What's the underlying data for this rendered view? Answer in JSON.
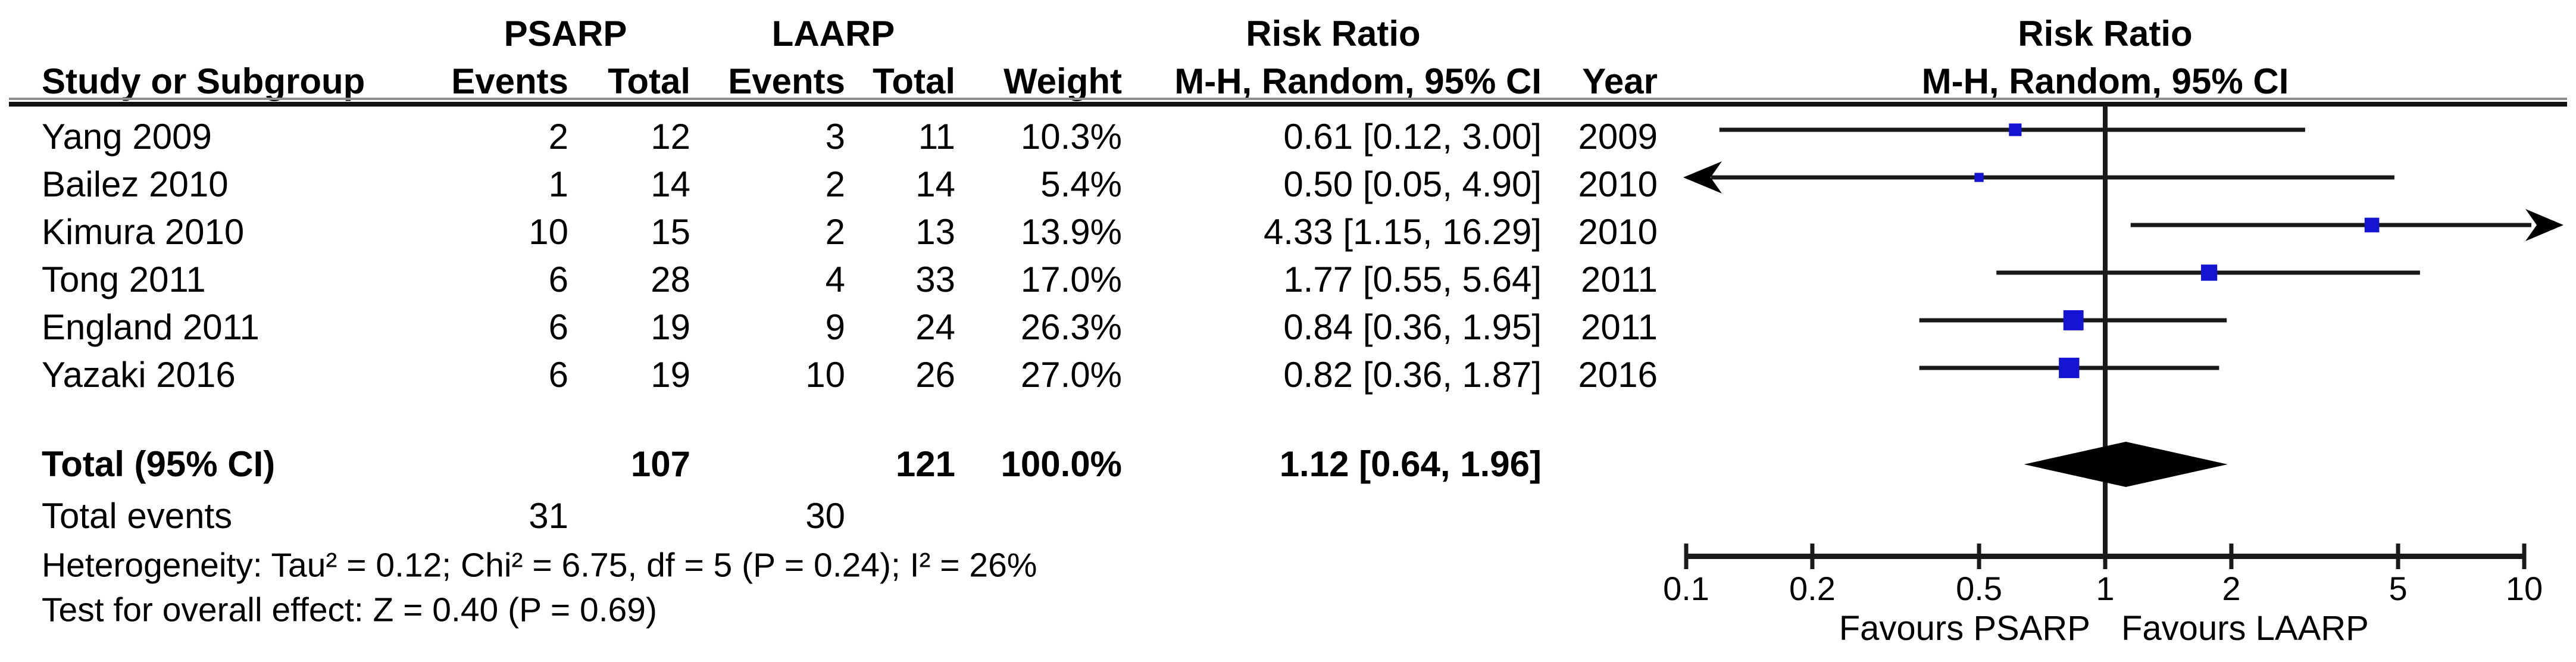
{
  "header": {
    "study_col": "Study or Subgroup",
    "group1": "PSARP",
    "group2": "LAARP",
    "events_col": "Events",
    "total_col": "Total",
    "weight_col": "Weight",
    "rr_group": "Risk Ratio",
    "mh_col": "M-H, Random, 95% CI",
    "year_col": "Year",
    "plot_title": "Risk Ratio",
    "plot_subtitle": "M-H, Random, 95% CI"
  },
  "studies": [
    {
      "name": "Yang 2009",
      "psarp_events": "2",
      "psarp_total": "12",
      "laarp_events": "3",
      "laarp_total": "11",
      "weight": "10.3%",
      "ci_text": "0.61 [0.12, 3.00]",
      "year": "2009",
      "rr": 0.61,
      "lo": 0.12,
      "hi": 3.0,
      "weight_val": 10.3
    },
    {
      "name": "Bailez 2010",
      "psarp_events": "1",
      "psarp_total": "14",
      "laarp_events": "2",
      "laarp_total": "14",
      "weight": "5.4%",
      "ci_text": "0.50 [0.05, 4.90]",
      "year": "2010",
      "rr": 0.5,
      "lo": 0.05,
      "hi": 4.9,
      "weight_val": 5.4
    },
    {
      "name": "Kimura 2010",
      "psarp_events": "10",
      "psarp_total": "15",
      "laarp_events": "2",
      "laarp_total": "13",
      "weight": "13.9%",
      "ci_text": "4.33 [1.15, 16.29]",
      "year": "2010",
      "rr": 4.33,
      "lo": 1.15,
      "hi": 16.29,
      "weight_val": 13.9
    },
    {
      "name": "Tong 2011",
      "psarp_events": "6",
      "psarp_total": "28",
      "laarp_events": "4",
      "laarp_total": "33",
      "weight": "17.0%",
      "ci_text": "1.77 [0.55, 5.64]",
      "year": "2011",
      "rr": 1.77,
      "lo": 0.55,
      "hi": 5.64,
      "weight_val": 17.0
    },
    {
      "name": "England 2011",
      "psarp_events": "6",
      "psarp_total": "19",
      "laarp_events": "9",
      "laarp_total": "24",
      "weight": "26.3%",
      "ci_text": "0.84 [0.36, 1.95]",
      "year": "2011",
      "rr": 0.84,
      "lo": 0.36,
      "hi": 1.95,
      "weight_val": 26.3
    },
    {
      "name": "Yazaki 2016",
      "psarp_events": "6",
      "psarp_total": "19",
      "laarp_events": "10",
      "laarp_total": "26",
      "weight": "27.0%",
      "ci_text": "0.82 [0.36, 1.87]",
      "year": "2016",
      "rr": 0.82,
      "lo": 0.36,
      "hi": 1.87,
      "weight_val": 27.0
    }
  ],
  "total_row": {
    "label": "Total (95% CI)",
    "psarp_total": "107",
    "laarp_total": "121",
    "weight": "100.0%",
    "ci_text": "1.12 [0.64, 1.96]",
    "rr": 1.12,
    "lo": 0.64,
    "hi": 1.96
  },
  "total_events": {
    "label": "Total events",
    "psarp": "31",
    "laarp": "30"
  },
  "footnotes": {
    "heterogeneity": "Heterogeneity: Tau² = 0.12; Chi² = 6.75, df = 5 (P = 0.24); I² = 26%",
    "overall_effect": "Test for overall effect: Z = 0.40 (P = 0.69)"
  },
  "axis": {
    "tick_labels": [
      "0.1",
      "0.2",
      "0.5",
      "1",
      "2",
      "5",
      "10"
    ],
    "tick_values": [
      0.1,
      0.2,
      0.5,
      1,
      2,
      5,
      10
    ],
    "min": 0.1,
    "max": 10,
    "favours_left": "Favours PSARP",
    "favours_right": "Favours LAARP"
  },
  "colors": {
    "marker_blue": "#1414d2",
    "line_black": "#1a1a1a"
  },
  "chart_data": {
    "type": "scatter",
    "subtype": "forest_plot",
    "title": "Risk Ratio",
    "subtitle": "M-H, Random, 95% CI",
    "method": "Mantel-Haenszel, Random effects, 95% CI",
    "x_scale": "log10",
    "xlim": [
      0.1,
      10
    ],
    "x_ticks": [
      0.1,
      0.2,
      0.5,
      1,
      2,
      5,
      10
    ],
    "x_annotations": [
      "Favours PSARP",
      "Favours LAARP"
    ],
    "groups": [
      "PSARP",
      "LAARP"
    ],
    "studies": [
      {
        "study": "Yang 2009",
        "psarp_events": 2,
        "psarp_total": 12,
        "laarp_events": 3,
        "laarp_total": 11,
        "weight_pct": 10.3,
        "rr": 0.61,
        "ci_low": 0.12,
        "ci_high": 3.0,
        "year": 2009
      },
      {
        "study": "Bailez 2010",
        "psarp_events": 1,
        "psarp_total": 14,
        "laarp_events": 2,
        "laarp_total": 14,
        "weight_pct": 5.4,
        "rr": 0.5,
        "ci_low": 0.05,
        "ci_high": 4.9,
        "year": 2010
      },
      {
        "study": "Kimura 2010",
        "psarp_events": 10,
        "psarp_total": 15,
        "laarp_events": 2,
        "laarp_total": 13,
        "weight_pct": 13.9,
        "rr": 4.33,
        "ci_low": 1.15,
        "ci_high": 16.29,
        "year": 2010
      },
      {
        "study": "Tong 2011",
        "psarp_events": 6,
        "psarp_total": 28,
        "laarp_events": 4,
        "laarp_total": 33,
        "weight_pct": 17.0,
        "rr": 1.77,
        "ci_low": 0.55,
        "ci_high": 5.64,
        "year": 2011
      },
      {
        "study": "England 2011",
        "psarp_events": 6,
        "psarp_total": 19,
        "laarp_events": 9,
        "laarp_total": 24,
        "weight_pct": 26.3,
        "rr": 0.84,
        "ci_low": 0.36,
        "ci_high": 1.95,
        "year": 2011
      },
      {
        "study": "Yazaki 2016",
        "psarp_events": 6,
        "psarp_total": 19,
        "laarp_events": 10,
        "laarp_total": 26,
        "weight_pct": 27.0,
        "rr": 0.82,
        "ci_low": 0.36,
        "ci_high": 1.87,
        "year": 2016
      }
    ],
    "total": {
      "label": "Total (95% CI)",
      "psarp_total": 107,
      "laarp_total": 121,
      "psarp_events": 31,
      "laarp_events": 30,
      "weight_pct": 100.0,
      "rr": 1.12,
      "ci_low": 0.64,
      "ci_high": 1.96
    },
    "heterogeneity": {
      "tau2": 0.12,
      "chi2": 6.75,
      "df": 5,
      "p": 0.24,
      "i2_pct": 26
    },
    "overall_effect": {
      "z": 0.4,
      "p": 0.69
    }
  }
}
